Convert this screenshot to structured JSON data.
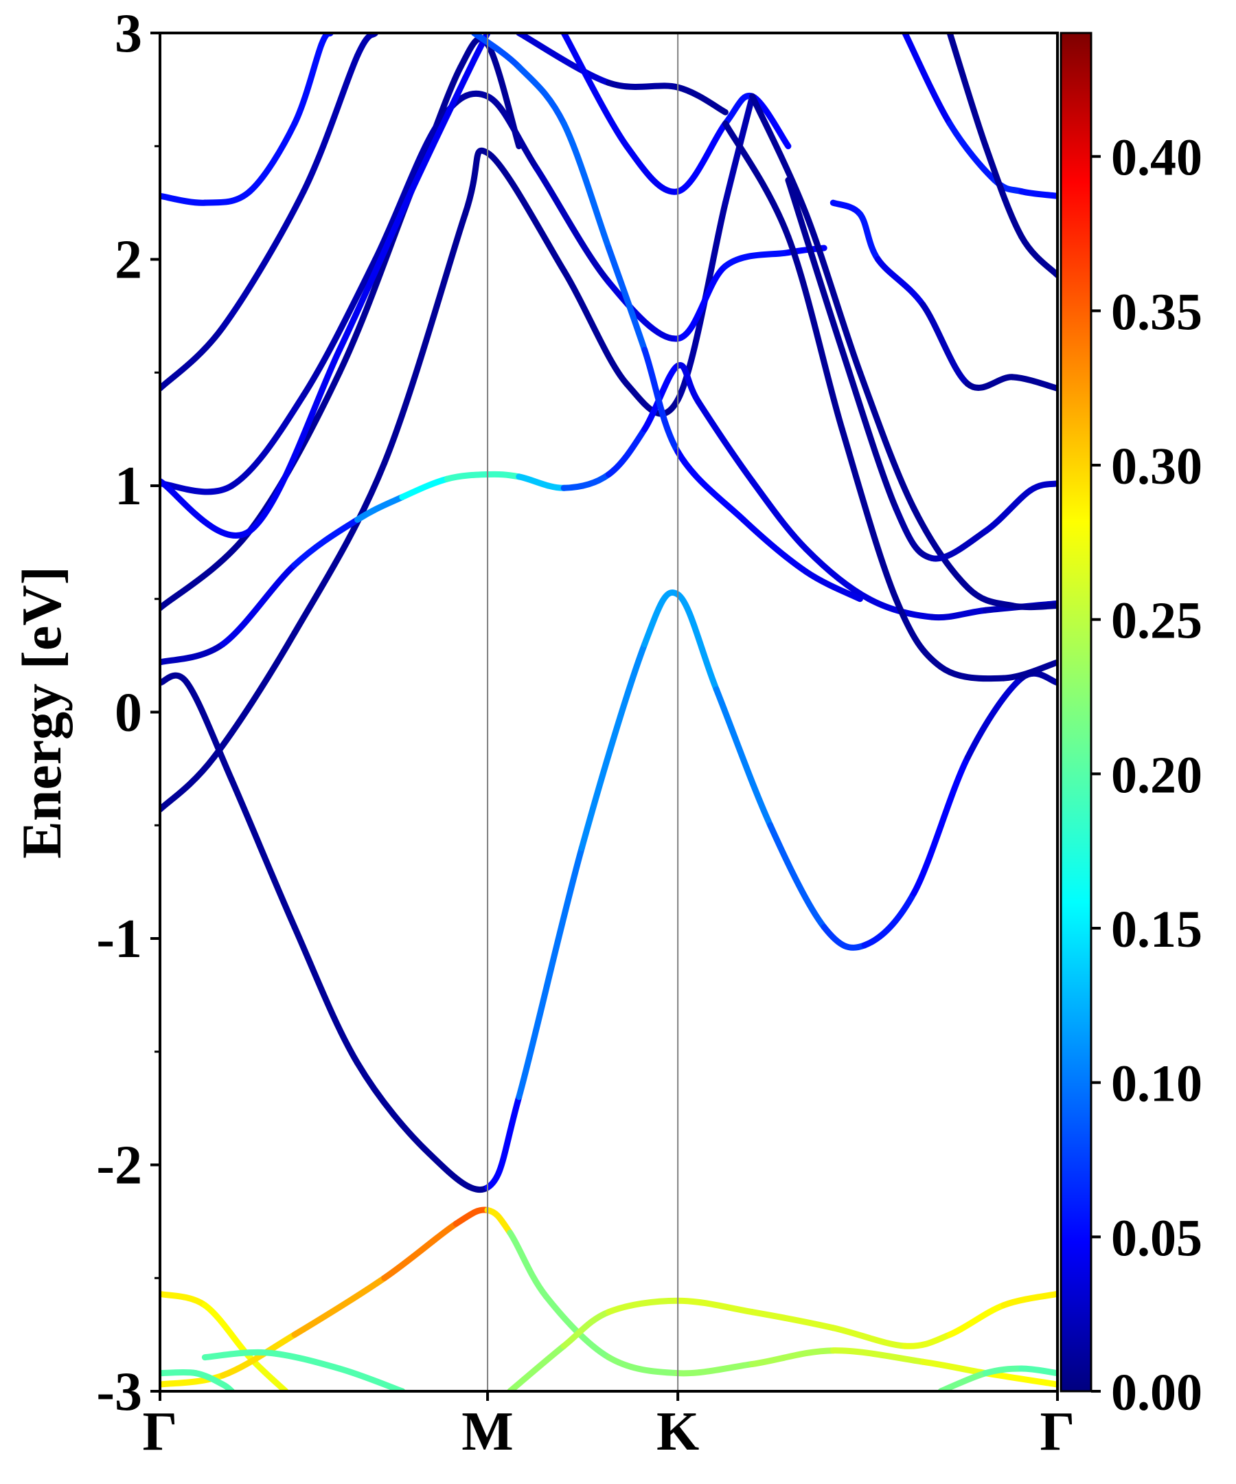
{
  "chart_data": {
    "type": "line",
    "title": "",
    "xlabel": "",
    "ylabel": "Energy [eV]",
    "ylim": [
      -3,
      3
    ],
    "x_ticks": [
      {
        "label": "Γ",
        "x": 0.0
      },
      {
        "label": "M",
        "x": 0.365
      },
      {
        "label": "K",
        "x": 0.577
      },
      {
        "label": "Γ",
        "x": 1.0
      }
    ],
    "y_ticks": [
      "-3",
      "-2",
      "-1",
      "0",
      "1",
      "2",
      "3"
    ],
    "y_tick_values": [
      -3,
      -2,
      -1,
      0,
      1,
      2,
      3
    ],
    "colorbar": {
      "range": [
        0.0,
        0.44
      ],
      "tick_labels": [
        "0.00",
        "0.05",
        "0.10",
        "0.15",
        "0.20",
        "0.25",
        "0.30",
        "0.35",
        "0.40"
      ],
      "tick_values": [
        0.0,
        0.05,
        0.1,
        0.15,
        0.2,
        0.25,
        0.3,
        0.35,
        0.4
      ],
      "colormap": "jet"
    },
    "series": [
      {
        "points": [
          [
            0.0,
            -0.43,
            0.01
          ],
          [
            0.06,
            -0.2,
            0.01
          ],
          [
            0.15,
            0.35,
            0.01
          ],
          [
            0.25,
            1.1,
            0.01
          ],
          [
            0.34,
            2.2,
            0.01
          ],
          [
            0.365,
            2.47,
            0.01
          ],
          [
            0.45,
            1.95,
            0.01
          ],
          [
            0.52,
            1.45,
            0.01
          ],
          [
            0.577,
            1.38,
            0.01
          ],
          [
            0.63,
            2.25,
            0.02
          ],
          [
            0.66,
            2.72,
            0.02
          ]
        ]
      },
      {
        "points": [
          [
            0.0,
            0.13,
            0.01
          ],
          [
            0.03,
            0.13,
            0.01
          ],
          [
            0.08,
            -0.3,
            0.01
          ],
          [
            0.15,
            -0.95,
            0.01
          ],
          [
            0.22,
            -1.55,
            0.01
          ],
          [
            0.3,
            -1.95,
            0.01
          ],
          [
            0.365,
            -2.1,
            0.01
          ],
          [
            0.4,
            -1.7,
            0.1
          ],
          [
            0.47,
            -0.6,
            0.11
          ],
          [
            0.54,
            0.3,
            0.12
          ],
          [
            0.577,
            0.52,
            0.13
          ],
          [
            0.62,
            0.1,
            0.12
          ],
          [
            0.68,
            -0.5,
            0.1
          ],
          [
            0.74,
            -0.95,
            0.09
          ],
          [
            0.785,
            -1.03,
            0.07
          ],
          [
            0.84,
            -0.8,
            0.06
          ],
          [
            0.9,
            -0.2,
            0.05
          ],
          [
            0.96,
            0.15,
            0.02
          ],
          [
            1.0,
            0.13,
            0.01
          ]
        ]
      },
      {
        "points": [
          [
            0.0,
            0.22,
            0.01
          ],
          [
            0.07,
            0.3,
            0.04
          ],
          [
            0.15,
            0.65,
            0.05
          ],
          [
            0.22,
            0.85,
            0.08
          ],
          [
            0.27,
            0.95,
            0.15
          ],
          [
            0.32,
            1.03,
            0.18
          ],
          [
            0.365,
            1.05,
            0.2
          ],
          [
            0.4,
            1.04,
            0.18
          ],
          [
            0.45,
            0.99,
            0.1
          ],
          [
            0.5,
            1.05,
            0.08
          ],
          [
            0.54,
            1.25,
            0.06
          ],
          [
            0.577,
            1.53,
            0.05
          ],
          [
            0.6,
            1.37,
            0.04
          ],
          [
            0.66,
            1.02,
            0.04
          ],
          [
            0.72,
            0.72,
            0.04
          ],
          [
            0.79,
            0.5,
            0.04
          ],
          [
            0.86,
            0.42,
            0.04
          ],
          [
            0.92,
            0.45,
            0.03
          ],
          [
            1.0,
            0.48,
            0.02
          ]
        ]
      },
      {
        "points": [
          [
            0.0,
            0.46,
            0.01
          ],
          [
            0.1,
            0.8,
            0.01
          ],
          [
            0.2,
            1.5,
            0.01
          ],
          [
            0.28,
            2.3,
            0.01
          ],
          [
            0.335,
            2.85,
            0.01
          ],
          [
            0.365,
            2.95,
            0.01
          ],
          [
            0.4,
            2.5,
            0.01
          ]
        ]
      },
      {
        "points": [
          [
            0.0,
            1.01,
            0.03
          ],
          [
            0.08,
            1.0,
            0.03
          ],
          [
            0.16,
            1.4,
            0.02
          ],
          [
            0.24,
            2.0,
            0.02
          ],
          [
            0.31,
            2.6,
            0.02
          ],
          [
            0.365,
            2.72,
            0.01
          ],
          [
            0.42,
            2.4,
            0.02
          ],
          [
            0.5,
            1.9,
            0.03
          ],
          [
            0.577,
            1.65,
            0.05
          ],
          [
            0.63,
            1.97,
            0.06
          ],
          [
            0.7,
            2.03,
            0.06
          ],
          [
            0.74,
            2.05,
            0.05
          ]
        ]
      },
      {
        "points": [
          [
            0.0,
            1.02,
            0.05
          ],
          [
            0.1,
            0.8,
            0.05
          ],
          [
            0.2,
            1.6,
            0.05
          ],
          [
            0.28,
            2.3,
            0.05
          ],
          [
            0.34,
            2.8,
            0.05
          ],
          [
            0.365,
            3.0,
            0.05
          ]
        ]
      },
      {
        "points": [
          [
            0.0,
            1.43,
            0.01
          ],
          [
            0.07,
            1.7,
            0.02
          ],
          [
            0.16,
            2.3,
            0.02
          ],
          [
            0.22,
            2.9,
            0.02
          ],
          [
            0.24,
            3.0,
            0.02
          ]
        ]
      },
      {
        "points": [
          [
            0.0,
            2.28,
            0.06
          ],
          [
            0.05,
            2.25,
            0.06
          ],
          [
            0.1,
            2.3,
            0.06
          ],
          [
            0.15,
            2.6,
            0.06
          ],
          [
            0.18,
            2.95,
            0.06
          ],
          [
            0.19,
            3.0,
            0.06
          ]
        ]
      },
      {
        "points": [
          [
            0.35,
            3.0,
            0.09
          ],
          [
            0.4,
            2.85,
            0.09
          ],
          [
            0.45,
            2.6,
            0.1
          ],
          [
            0.5,
            2.05,
            0.1
          ],
          [
            0.54,
            1.6,
            0.09
          ],
          [
            0.577,
            1.15,
            0.06
          ],
          [
            0.65,
            0.85,
            0.05
          ],
          [
            0.72,
            0.62,
            0.05
          ],
          [
            0.78,
            0.5,
            0.04
          ]
        ]
      },
      {
        "points": [
          [
            0.4,
            3.0,
            0.05
          ],
          [
            0.5,
            2.78,
            0.02
          ],
          [
            0.577,
            2.76,
            0.01
          ],
          [
            0.63,
            2.65,
            0.01
          ]
        ]
      },
      {
        "points": [
          [
            0.45,
            3.0,
            0.05
          ],
          [
            0.52,
            2.5,
            0.05
          ],
          [
            0.577,
            2.3,
            0.05
          ],
          [
            0.63,
            2.6,
            0.06
          ],
          [
            0.66,
            2.72,
            0.06
          ],
          [
            0.7,
            2.5,
            0.05
          ]
        ]
      },
      {
        "points": [
          [
            0.66,
            2.72,
            0.01
          ],
          [
            0.72,
            2.2,
            0.01
          ],
          [
            0.78,
            1.5,
            0.01
          ],
          [
            0.84,
            0.9,
            0.01
          ],
          [
            0.9,
            0.55,
            0.01
          ],
          [
            0.95,
            0.47,
            0.01
          ],
          [
            1.0,
            0.47,
            0.01
          ]
        ]
      },
      {
        "points": [
          [
            0.7,
            2.35,
            0.01
          ],
          [
            0.76,
            1.6,
            0.01
          ],
          [
            0.82,
            0.9,
            0.01
          ],
          [
            0.86,
            0.68,
            0.02
          ],
          [
            0.92,
            0.8,
            0.03
          ],
          [
            0.97,
            0.98,
            0.03
          ],
          [
            1.0,
            1.01,
            0.03
          ]
        ]
      },
      {
        "points": [
          [
            0.63,
            2.6,
            0.01
          ],
          [
            0.7,
            2.1,
            0.01
          ],
          [
            0.76,
            1.25,
            0.01
          ],
          [
            0.82,
            0.5,
            0.01
          ],
          [
            0.87,
            0.2,
            0.01
          ],
          [
            0.94,
            0.15,
            0.01
          ],
          [
            1.0,
            0.22,
            0.01
          ]
        ]
      },
      {
        "points": [
          [
            0.75,
            2.25,
            0.04
          ],
          [
            0.78,
            2.2,
            0.08
          ],
          [
            0.8,
            2.0,
            0.05
          ],
          [
            0.85,
            1.8,
            0.04
          ],
          [
            0.9,
            1.45,
            0.01
          ],
          [
            0.95,
            1.48,
            0.01
          ],
          [
            1.0,
            1.43,
            0.01
          ]
        ]
      },
      {
        "points": [
          [
            0.83,
            3.0,
            0.05
          ],
          [
            0.88,
            2.6,
            0.05
          ],
          [
            0.93,
            2.35,
            0.08
          ],
          [
            0.96,
            2.3,
            0.06
          ],
          [
            1.0,
            2.28,
            0.06
          ]
        ]
      },
      {
        "points": [
          [
            0.88,
            3.0,
            0.01
          ],
          [
            0.92,
            2.5,
            0.01
          ],
          [
            0.96,
            2.1,
            0.01
          ],
          [
            1.0,
            1.93,
            0.01
          ]
        ]
      },
      {
        "points": [
          [
            0.0,
            -2.57,
            0.28
          ],
          [
            0.05,
            -2.62,
            0.28
          ],
          [
            0.1,
            -2.85,
            0.27
          ],
          [
            0.14,
            -3.0,
            0.27
          ]
        ]
      },
      {
        "points": [
          [
            0.0,
            -2.97,
            0.28
          ],
          [
            0.07,
            -2.93,
            0.28
          ],
          [
            0.15,
            -2.75,
            0.3
          ],
          [
            0.25,
            -2.5,
            0.32
          ],
          [
            0.33,
            -2.26,
            0.34
          ],
          [
            0.365,
            -2.2,
            0.35
          ],
          [
            0.39,
            -2.3,
            0.22
          ],
          [
            0.43,
            -2.58,
            0.22
          ],
          [
            0.5,
            -2.85,
            0.22
          ],
          [
            0.577,
            -2.92,
            0.23
          ],
          [
            0.66,
            -2.88,
            0.23
          ],
          [
            0.75,
            -2.82,
            0.25
          ],
          [
            0.85,
            -2.87,
            0.26
          ],
          [
            0.92,
            -2.92,
            0.27
          ],
          [
            1.0,
            -2.97,
            0.28
          ]
        ]
      },
      {
        "points": [
          [
            0.0,
            -2.92,
            0.2
          ],
          [
            0.04,
            -2.92,
            0.2
          ],
          [
            0.07,
            -2.97,
            0.2
          ],
          [
            0.08,
            -3.0,
            0.2
          ]
        ]
      },
      {
        "points": [
          [
            0.05,
            -2.85,
            0.2
          ],
          [
            0.12,
            -2.83,
            0.2
          ],
          [
            0.2,
            -2.9,
            0.2
          ],
          [
            0.27,
            -3.0,
            0.2
          ]
        ]
      },
      {
        "points": [
          [
            0.39,
            -3.0,
            0.22
          ],
          [
            0.45,
            -2.8,
            0.24
          ],
          [
            0.5,
            -2.65,
            0.25
          ],
          [
            0.577,
            -2.6,
            0.26
          ],
          [
            0.66,
            -2.65,
            0.26
          ],
          [
            0.75,
            -2.72,
            0.26
          ],
          [
            0.83,
            -2.8,
            0.26
          ],
          [
            0.88,
            -2.75,
            0.27
          ],
          [
            0.94,
            -2.62,
            0.28
          ],
          [
            1.0,
            -2.57,
            0.28
          ]
        ]
      },
      {
        "points": [
          [
            0.87,
            -3.0,
            0.22
          ],
          [
            0.92,
            -2.92,
            0.21
          ],
          [
            0.96,
            -2.9,
            0.2
          ],
          [
            1.0,
            -2.92,
            0.2
          ]
        ]
      }
    ]
  }
}
